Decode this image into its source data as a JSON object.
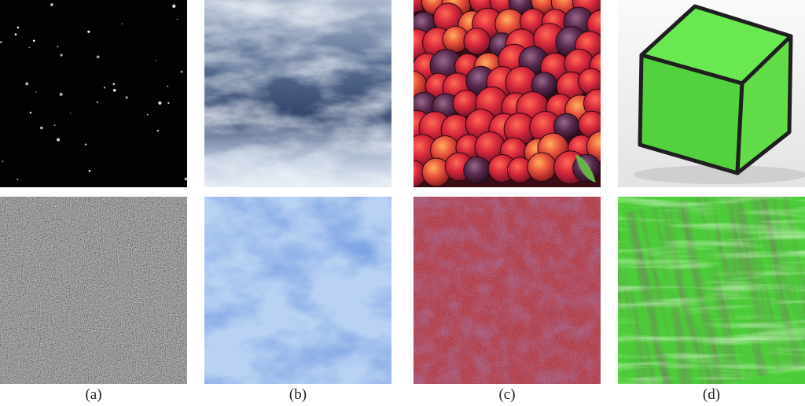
{
  "figure": {
    "columns": [
      {
        "caption": "(a)",
        "top_image": "starfield-photo",
        "bottom_image": "gray-noise-texture",
        "colors": {
          "top_bg": "#020202",
          "bottom_mid": "#8a8a8a"
        }
      },
      {
        "caption": "(b)",
        "top_image": "cloudy-sky-photo",
        "bottom_image": "blue-cloud-texture",
        "colors": {
          "top_dark": "#2c3f63",
          "top_light": "#dfe6f1",
          "bottom_dark": "#2d5ac0",
          "bottom_light": "#c8dcf6"
        }
      },
      {
        "caption": "(c)",
        "top_image": "plums-photo",
        "bottom_image": "red-plum-texture",
        "colors": {
          "top_red": "#d4283a",
          "top_purple": "#5a2a4e",
          "bottom_mid": "#a84552"
        }
      },
      {
        "caption": "(d)",
        "top_image": "green-cube-photo",
        "bottom_image": "green-streak-texture",
        "colors": {
          "cube_face": "#5ee04a",
          "cube_front": "#44c238",
          "cube_edge": "#1f1f1f",
          "background": "#efefef",
          "bottom_mid": "#4ecb3a"
        }
      }
    ]
  }
}
